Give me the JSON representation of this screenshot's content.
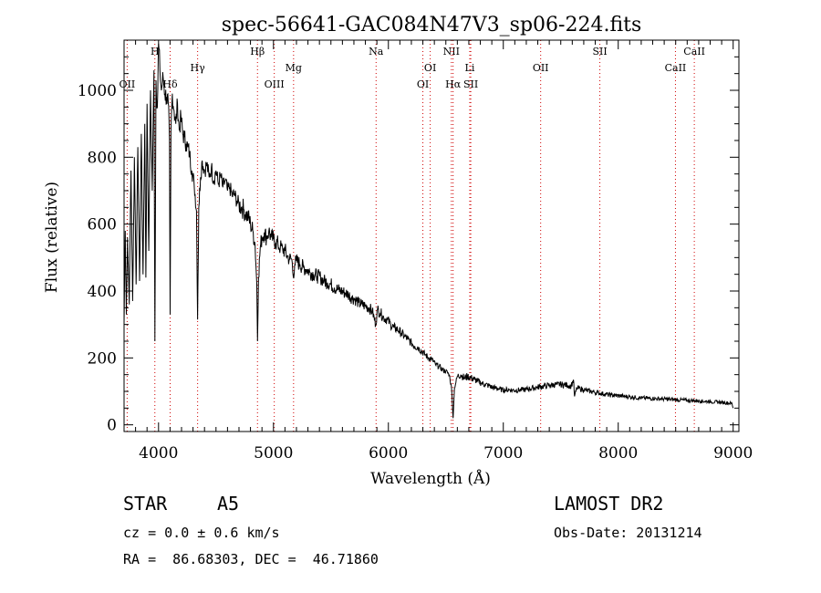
{
  "chart_data": {
    "type": "line",
    "title": "spec-56641-GAC084N47V3_sp06-224.fits",
    "xlabel": "Wavelength (Å)",
    "ylabel": "Flux (relative)",
    "xlim": [
      3700,
      9050
    ],
    "ylim": [
      -20,
      1150
    ],
    "xticks": [
      4000,
      5000,
      6000,
      7000,
      8000,
      9000
    ],
    "yticks": [
      0,
      200,
      400,
      600,
      800,
      1000
    ],
    "grid": false,
    "series": [
      {
        "color": "#000000",
        "points": [
          [
            3700,
            300
          ],
          [
            3710,
            580
          ],
          [
            3720,
            330
          ],
          [
            3730,
            560
          ],
          [
            3745,
            360
          ],
          [
            3760,
            760
          ],
          [
            3775,
            370
          ],
          [
            3790,
            800
          ],
          [
            3805,
            420
          ],
          [
            3820,
            830
          ],
          [
            3835,
            430
          ],
          [
            3850,
            870
          ],
          [
            3865,
            450
          ],
          [
            3880,
            900
          ],
          [
            3890,
            440
          ],
          [
            3900,
            960
          ],
          [
            3915,
            520
          ],
          [
            3930,
            1000
          ],
          [
            3945,
            700
          ],
          [
            3960,
            1060
          ],
          [
            3968,
            250
          ],
          [
            3978,
            1030
          ],
          [
            3990,
            950
          ],
          [
            4000,
            1140
          ],
          [
            4012,
            1060
          ],
          [
            4025,
            1000
          ],
          [
            4040,
            1040
          ],
          [
            4055,
            990
          ],
          [
            4070,
            980
          ],
          [
            4085,
            960
          ],
          [
            4095,
            850
          ],
          [
            4101,
            330
          ],
          [
            4108,
            880
          ],
          [
            4120,
            990
          ],
          [
            4135,
            940
          ],
          [
            4150,
            900
          ],
          [
            4165,
            960
          ],
          [
            4180,
            880
          ],
          [
            4195,
            920
          ],
          [
            4210,
            870
          ],
          [
            4225,
            860
          ],
          [
            4240,
            840
          ],
          [
            4255,
            830
          ],
          [
            4270,
            810
          ],
          [
            4290,
            760
          ],
          [
            4310,
            720
          ],
          [
            4330,
            640
          ],
          [
            4340,
            315
          ],
          [
            4350,
            650
          ],
          [
            4365,
            740
          ],
          [
            4380,
            790
          ],
          [
            4400,
            760
          ],
          [
            4420,
            780
          ],
          [
            4440,
            740
          ],
          [
            4460,
            770
          ],
          [
            4480,
            730
          ],
          [
            4500,
            760
          ],
          [
            4520,
            720
          ],
          [
            4540,
            745
          ],
          [
            4560,
            710
          ],
          [
            4580,
            730
          ],
          [
            4600,
            700
          ],
          [
            4620,
            710
          ],
          [
            4640,
            685
          ],
          [
            4660,
            690
          ],
          [
            4680,
            670
          ],
          [
            4700,
            660
          ],
          [
            4720,
            650
          ],
          [
            4740,
            645
          ],
          [
            4760,
            630
          ],
          [
            4780,
            620
          ],
          [
            4800,
            600
          ],
          [
            4820,
            580
          ],
          [
            4840,
            540
          ],
          [
            4855,
            420
          ],
          [
            4861,
            250
          ],
          [
            4870,
            440
          ],
          [
            4885,
            530
          ],
          [
            4900,
            560
          ],
          [
            4920,
            575
          ],
          [
            4940,
            560
          ],
          [
            4960,
            580
          ],
          [
            4980,
            560
          ],
          [
            5000,
            555
          ],
          [
            5020,
            545
          ],
          [
            5040,
            540
          ],
          [
            5060,
            530
          ],
          [
            5080,
            525
          ],
          [
            5100,
            520
          ],
          [
            5120,
            505
          ],
          [
            5140,
            495
          ],
          [
            5160,
            495
          ],
          [
            5172,
            445
          ],
          [
            5185,
            480
          ],
          [
            5200,
            490
          ],
          [
            5230,
            480
          ],
          [
            5260,
            470
          ],
          [
            5290,
            465
          ],
          [
            5320,
            455
          ],
          [
            5350,
            450
          ],
          [
            5380,
            445
          ],
          [
            5410,
            440
          ],
          [
            5440,
            430
          ],
          [
            5470,
            425
          ],
          [
            5500,
            420
          ],
          [
            5530,
            410
          ],
          [
            5560,
            405
          ],
          [
            5590,
            400
          ],
          [
            5620,
            395
          ],
          [
            5650,
            390
          ],
          [
            5680,
            380
          ],
          [
            5710,
            375
          ],
          [
            5740,
            365
          ],
          [
            5770,
            360
          ],
          [
            5800,
            355
          ],
          [
            5830,
            350
          ],
          [
            5860,
            340
          ],
          [
            5890,
            300
          ],
          [
            5905,
            345
          ],
          [
            5930,
            335
          ],
          [
            5960,
            320
          ],
          [
            5990,
            315
          ],
          [
            6020,
            300
          ],
          [
            6050,
            290
          ],
          [
            6080,
            285
          ],
          [
            6110,
            275
          ],
          [
            6140,
            265
          ],
          [
            6170,
            255
          ],
          [
            6200,
            245
          ],
          [
            6230,
            235
          ],
          [
            6260,
            230
          ],
          [
            6290,
            220
          ],
          [
            6320,
            210
          ],
          [
            6350,
            200
          ],
          [
            6380,
            195
          ],
          [
            6410,
            180
          ],
          [
            6440,
            175
          ],
          [
            6470,
            165
          ],
          [
            6500,
            160
          ],
          [
            6530,
            150
          ],
          [
            6550,
            110
          ],
          [
            6563,
            20
          ],
          [
            6575,
            110
          ],
          [
            6600,
            145
          ],
          [
            6630,
            150
          ],
          [
            6660,
            140
          ],
          [
            6690,
            145
          ],
          [
            6720,
            140
          ],
          [
            6750,
            135
          ],
          [
            6780,
            130
          ],
          [
            6810,
            125
          ],
          [
            6840,
            120
          ],
          [
            6870,
            118
          ],
          [
            6900,
            112
          ],
          [
            6930,
            110
          ],
          [
            6960,
            108
          ],
          [
            6990,
            105
          ],
          [
            7020,
            104
          ],
          [
            7050,
            105
          ],
          [
            7080,
            104
          ],
          [
            7110,
            103
          ],
          [
            7140,
            104
          ],
          [
            7170,
            105
          ],
          [
            7200,
            106
          ],
          [
            7230,
            108
          ],
          [
            7260,
            110
          ],
          [
            7290,
            112
          ],
          [
            7320,
            114
          ],
          [
            7350,
            115
          ],
          [
            7380,
            117
          ],
          [
            7410,
            118
          ],
          [
            7440,
            120
          ],
          [
            7470,
            120
          ],
          [
            7500,
            121
          ],
          [
            7530,
            120
          ],
          [
            7560,
            118
          ],
          [
            7590,
            116
          ],
          [
            7610,
            135
          ],
          [
            7620,
            85
          ],
          [
            7640,
            110
          ],
          [
            7670,
            108
          ],
          [
            7700,
            105
          ],
          [
            7730,
            102
          ],
          [
            7760,
            100
          ],
          [
            7790,
            98
          ],
          [
            7820,
            96
          ],
          [
            7850,
            94
          ],
          [
            7880,
            92
          ],
          [
            7910,
            90
          ],
          [
            7940,
            89
          ],
          [
            7970,
            88
          ],
          [
            8000,
            87
          ],
          [
            8030,
            86
          ],
          [
            8060,
            85
          ],
          [
            8090,
            84
          ],
          [
            8120,
            83
          ],
          [
            8150,
            82
          ],
          [
            8180,
            81
          ],
          [
            8210,
            80
          ],
          [
            8240,
            80
          ],
          [
            8270,
            79
          ],
          [
            8300,
            79
          ],
          [
            8330,
            78
          ],
          [
            8360,
            78
          ],
          [
            8390,
            77
          ],
          [
            8420,
            77
          ],
          [
            8450,
            76
          ],
          [
            8480,
            76
          ],
          [
            8510,
            75
          ],
          [
            8540,
            74
          ],
          [
            8570,
            74
          ],
          [
            8600,
            73
          ],
          [
            8630,
            73
          ],
          [
            8660,
            72
          ],
          [
            8690,
            72
          ],
          [
            8720,
            71
          ],
          [
            8750,
            70
          ],
          [
            8780,
            70
          ],
          [
            8810,
            69
          ],
          [
            8840,
            68
          ],
          [
            8870,
            68
          ],
          [
            8900,
            67
          ],
          [
            8930,
            66
          ],
          [
            8960,
            65
          ],
          [
            8990,
            64
          ],
          [
            9000,
            50
          ]
        ]
      }
    ],
    "lines": [
      {
        "label": "OII",
        "x": 3727,
        "row": 2
      },
      {
        "label": "H",
        "x": 3968,
        "row": 0
      },
      {
        "label": "Hδ",
        "x": 4101,
        "row": 2
      },
      {
        "label": "Hγ",
        "x": 4340,
        "row": 1
      },
      {
        "label": "Hβ",
        "x": 4861,
        "row": 0
      },
      {
        "label": "OIII",
        "x": 5007,
        "row": 2
      },
      {
        "label": "Mg",
        "x": 5175,
        "row": 1
      },
      {
        "label": "Na",
        "x": 5893,
        "row": 0
      },
      {
        "label": "OI",
        "x": 6300,
        "row": 2
      },
      {
        "label": "OI",
        "x": 6364,
        "row": 1
      },
      {
        "label": "NII",
        "x": 6548,
        "row": 0
      },
      {
        "label": "Hα",
        "x": 6563,
        "row": 2
      },
      {
        "label": "Li",
        "x": 6708,
        "row": 1
      },
      {
        "label": "SII",
        "x": 6717,
        "row": 2
      },
      {
        "label": "OII",
        "x": 7325,
        "row": 1
      },
      {
        "label": "SII",
        "x": 7840,
        "row": 0
      },
      {
        "label": "CaII",
        "x": 8498,
        "row": 1
      },
      {
        "label": "CaII",
        "x": 8662,
        "row": 0
      }
    ]
  },
  "info": {
    "class_label": "STAR",
    "subclass": "A5",
    "survey": "LAMOST DR2",
    "cz": "cz = 0.0 ± 0.6 km/s",
    "obs_date": "Obs-Date: 20131214",
    "coords": "RA =  86.68303, DEC =  46.71860"
  },
  "colors": {
    "spectrum": "#000000",
    "line_markers": "#d00000"
  }
}
